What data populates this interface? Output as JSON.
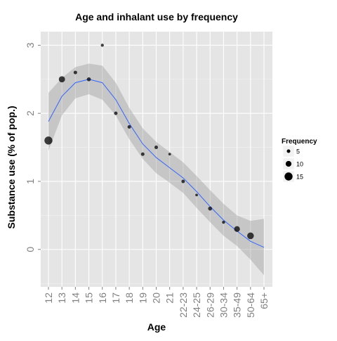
{
  "chart_data": {
    "type": "scatter",
    "title": "Age and inhalant use by frequency",
    "xlabel": "Age",
    "ylabel": "Substance use (% of pop.)",
    "categories": [
      "12",
      "13",
      "14",
      "15",
      "16",
      "17",
      "18",
      "19",
      "20",
      "21",
      "22-23",
      "24-25",
      "26-29",
      "30-34",
      "35-49",
      "50-64",
      "65+"
    ],
    "ylim": [
      -0.55,
      3.2
    ],
    "yticks": [
      0,
      1,
      2,
      3
    ],
    "points": [
      {
        "x": "12",
        "y": 1.6,
        "freq": 15
      },
      {
        "x": "13",
        "y": 2.5,
        "freq": 11
      },
      {
        "x": "14",
        "y": 2.6,
        "freq": 5
      },
      {
        "x": "15",
        "y": 2.5,
        "freq": 6
      },
      {
        "x": "16",
        "y": 3.0,
        "freq": 4
      },
      {
        "x": "17",
        "y": 2.0,
        "freq": 5
      },
      {
        "x": "18",
        "y": 1.8,
        "freq": 5
      },
      {
        "x": "19",
        "y": 1.4,
        "freq": 5
      },
      {
        "x": "20",
        "y": 1.5,
        "freq": 5
      },
      {
        "x": "21",
        "y": 1.4,
        "freq": 3
      },
      {
        "x": "22-23",
        "y": 1.0,
        "freq": 5
      },
      {
        "x": "24-25",
        "y": 0.8,
        "freq": 3
      },
      {
        "x": "26-29",
        "y": 0.6,
        "freq": 6
      },
      {
        "x": "30-34",
        "y": 0.4,
        "freq": 4
      },
      {
        "x": "35-49",
        "y": 0.3,
        "freq": 10
      },
      {
        "x": "50-64",
        "y": 0.2,
        "freq": 12
      }
    ],
    "smooth": {
      "x": [
        "12",
        "13",
        "14",
        "15",
        "16",
        "17",
        "18",
        "19",
        "20",
        "21",
        "22-23",
        "24-25",
        "26-29",
        "30-34",
        "35-49",
        "50-64",
        "65+"
      ],
      "y": [
        1.88,
        2.25,
        2.45,
        2.5,
        2.45,
        2.2,
        1.85,
        1.55,
        1.35,
        1.2,
        1.05,
        0.85,
        0.63,
        0.43,
        0.27,
        0.12,
        0.03
      ],
      "lower": [
        1.45,
        1.97,
        2.22,
        2.28,
        2.2,
        1.97,
        1.62,
        1.33,
        1.12,
        0.98,
        0.83,
        0.61,
        0.4,
        0.2,
        0.05,
        -0.15,
        -0.38
      ],
      "upper": [
        2.3,
        2.52,
        2.68,
        2.73,
        2.7,
        2.45,
        2.08,
        1.78,
        1.58,
        1.43,
        1.28,
        1.08,
        0.87,
        0.67,
        0.5,
        0.42,
        0.45
      ],
      "line_color": "#3366FF",
      "band_color": "#999999"
    },
    "legend": {
      "title": "Frequency",
      "placement": "right",
      "entries": [
        {
          "label": "5",
          "value": 5
        },
        {
          "label": "10",
          "value": 10
        },
        {
          "label": "15",
          "value": 15
        }
      ]
    },
    "panel_color": "#E5E5E5",
    "grid": true,
    "point_color": "#000000"
  }
}
